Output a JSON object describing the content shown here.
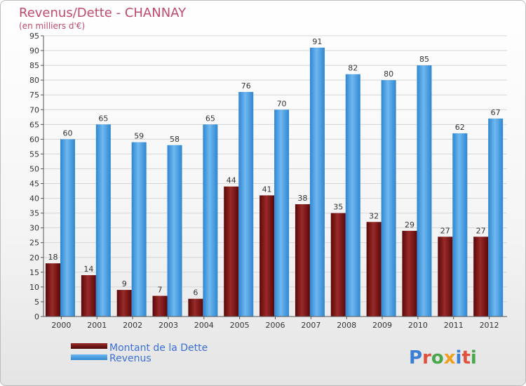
{
  "chart_data": {
    "type": "bar",
    "title": "Revenus/Dette - CHANNAY",
    "subtitle": "(en milliers d'€)",
    "xlabel": "",
    "ylabel": "",
    "ylim": [
      0,
      95
    ],
    "ytick_step": 5,
    "grid": true,
    "legend_position": "bottom-left",
    "categories": [
      "2000",
      "2001",
      "2002",
      "2003",
      "2004",
      "2005",
      "2006",
      "2007",
      "2008",
      "2009",
      "2010",
      "2011",
      "2012"
    ],
    "series": [
      {
        "name": "Montant de la Dette",
        "color": "#7a1010",
        "values": [
          18,
          14,
          9,
          7,
          6,
          44,
          41,
          38,
          35,
          32,
          29,
          27,
          27
        ]
      },
      {
        "name": "Revenus",
        "color": "#4aa0e6",
        "values": [
          60,
          65,
          59,
          58,
          65,
          76,
          70,
          91,
          82,
          80,
          85,
          62,
          67
        ]
      }
    ]
  },
  "logo": {
    "text": "Proxiti"
  }
}
